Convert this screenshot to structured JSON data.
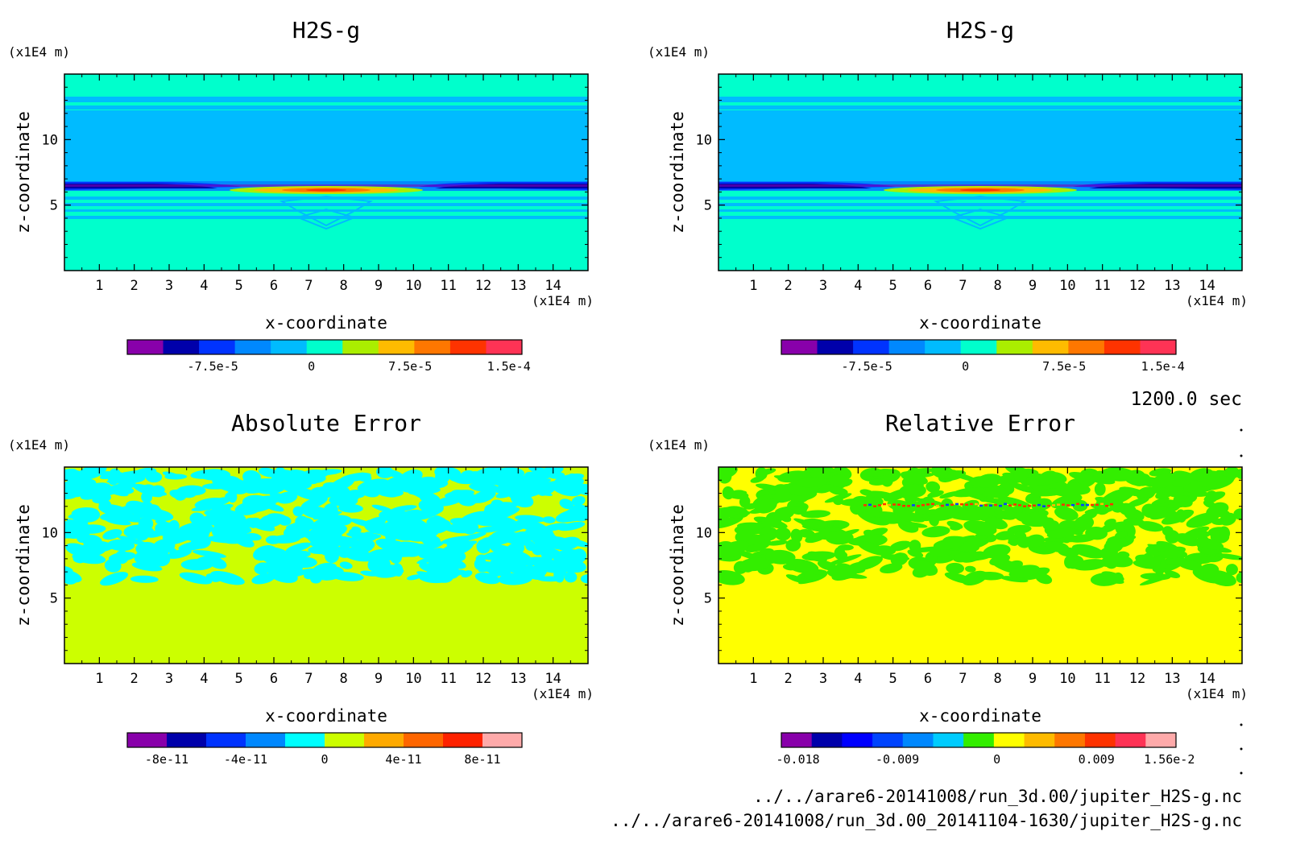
{
  "unit_label": "(x1E4 m)",
  "time_label": "1200.0 sec",
  "files": [
    "../../arare6-20141008/run_3d.00/jupiter_H2S-g.nc",
    "../../arare6-20141008/run_3d.00_20141104-1630/jupiter_H2S-g.nc"
  ],
  "chart_data": [
    {
      "type": "heatmap",
      "title": "H2S-g",
      "xlabel": "x-coordinate",
      "ylabel": "z-coordinate",
      "xlim": [
        0,
        15
      ],
      "ylim": [
        0,
        15
      ],
      "xticks": [
        1,
        2,
        3,
        4,
        5,
        6,
        7,
        8,
        9,
        10,
        11,
        12,
        13,
        14
      ],
      "yticks": [
        5,
        10
      ],
      "colorbar": {
        "colors": [
          "#8800aa",
          "#0000aa",
          "#0033ff",
          "#0088ff",
          "#00bbff",
          "#00ffcc",
          "#aaee00",
          "#ffbb00",
          "#ff7700",
          "#ff3300",
          "#ff3355"
        ],
        "tick_labels": [
          "-7.5e-5",
          "0",
          "7.5e-5",
          "1.5e-4"
        ],
        "tick_values": [
          -7.5e-05,
          0,
          7.5e-05,
          0.00015
        ],
        "range": [
          -0.00014,
          0.00016
        ]
      }
    },
    {
      "type": "heatmap",
      "title": "H2S-g",
      "xlabel": "x-coordinate",
      "ylabel": "z-coordinate",
      "xlim": [
        0,
        15
      ],
      "ylim": [
        0,
        15
      ],
      "xticks": [
        1,
        2,
        3,
        4,
        5,
        6,
        7,
        8,
        9,
        10,
        11,
        12,
        13,
        14
      ],
      "yticks": [
        5,
        10
      ],
      "colorbar": {
        "colors": [
          "#8800aa",
          "#0000aa",
          "#0033ff",
          "#0088ff",
          "#00bbff",
          "#00ffcc",
          "#aaee00",
          "#ffbb00",
          "#ff7700",
          "#ff3300",
          "#ff3355"
        ],
        "tick_labels": [
          "-7.5e-5",
          "0",
          "7.5e-5",
          "1.5e-4"
        ],
        "tick_values": [
          -7.5e-05,
          0,
          7.5e-05,
          0.00015
        ],
        "range": [
          -0.00014,
          0.00016
        ]
      }
    },
    {
      "type": "heatmap",
      "title": "Absolute Error",
      "xlabel": "x-coordinate",
      "ylabel": "z-coordinate",
      "xlim": [
        0,
        15
      ],
      "ylim": [
        0,
        15
      ],
      "xticks": [
        1,
        2,
        3,
        4,
        5,
        6,
        7,
        8,
        9,
        10,
        11,
        12,
        13,
        14
      ],
      "yticks": [
        5,
        10
      ],
      "colorbar": {
        "colors": [
          "#8800aa",
          "#0000aa",
          "#0033ff",
          "#0088ff",
          "#00ffff",
          "#ccff00",
          "#ffaa00",
          "#ff6600",
          "#ff2200",
          "#ffaaaa"
        ],
        "tick_labels": [
          "-8e-11",
          "-4e-11",
          "0",
          "4e-11",
          "8e-11"
        ],
        "tick_values": [
          -8e-11,
          -4e-11,
          0,
          4e-11,
          8e-11
        ],
        "range": [
          -1e-10,
          1e-10
        ]
      }
    },
    {
      "type": "heatmap",
      "title": "Relative Error",
      "xlabel": "x-coordinate",
      "ylabel": "z-coordinate",
      "xlim": [
        0,
        15
      ],
      "ylim": [
        0,
        15
      ],
      "xticks": [
        1,
        2,
        3,
        4,
        5,
        6,
        7,
        8,
        9,
        10,
        11,
        12,
        13,
        14
      ],
      "yticks": [
        5,
        10
      ],
      "colorbar": {
        "colors": [
          "#8800aa",
          "#0000aa",
          "#0000ff",
          "#0044ff",
          "#0088ff",
          "#00ccff",
          "#33ee00",
          "#ffff00",
          "#ffbb00",
          "#ff7700",
          "#ff3300",
          "#ff3355",
          "#ffaaaa"
        ],
        "tick_labels": [
          "-0.018",
          "-0.009",
          "0",
          "0.009",
          "1.56e-2"
        ],
        "tick_values": [
          -0.018,
          -0.009,
          0,
          0.009,
          0.0156
        ],
        "range": [
          -0.0195,
          0.0162
        ]
      }
    }
  ]
}
